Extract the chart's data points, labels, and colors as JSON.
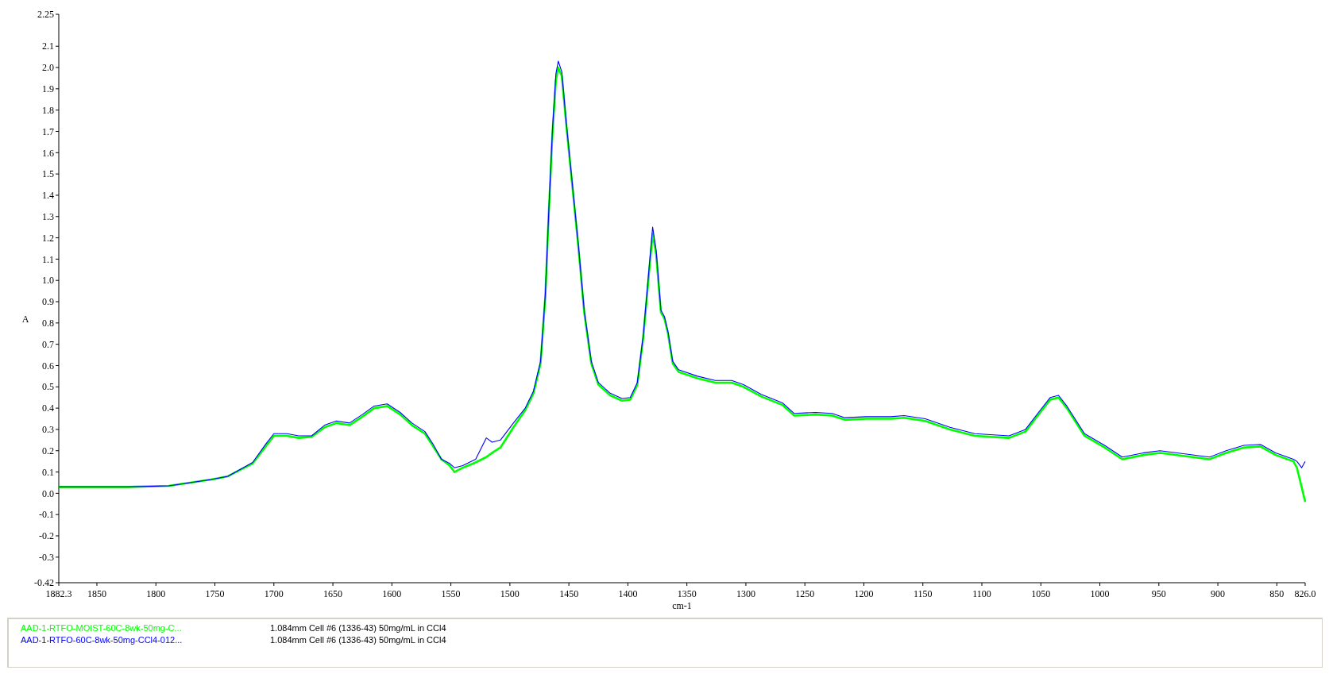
{
  "chart_data": {
    "type": "line",
    "xlabel": "cm-1",
    "ylabel": "A",
    "xlim": [
      1882.3,
      826
    ],
    "ylim": [
      -0.42,
      2.25
    ],
    "xticks": [
      1882.3,
      1850,
      1800,
      1750,
      1700,
      1650,
      1600,
      1550,
      1500,
      1450,
      1400,
      1350,
      1300,
      1250,
      1200,
      1150,
      1100,
      1050,
      1000,
      950,
      900,
      850,
      {
        "value": 826,
        "label": "826.0"
      }
    ],
    "yticks": [
      2.25,
      2.1,
      {
        "value": 2,
        "label": "2.0"
      },
      1.9,
      1.8,
      1.7,
      1.6,
      1.5,
      1.4,
      1.3,
      1.2,
      1.1,
      {
        "value": 1,
        "label": "1.0"
      },
      0.9,
      0.8,
      0.7,
      0.6,
      0.5,
      0.4,
      0.3,
      0.2,
      0.1,
      {
        "value": 0,
        "label": "0.0"
      },
      -0.1,
      -0.2,
      -0.3,
      -0.42
    ],
    "grid": false,
    "legend": "bottom",
    "marker": "none",
    "line_style": "solid",
    "annotations": [
      "1.084mm Cell #6 (1336-43) 50mg/mL in CCl4",
      "1.084mm Cell #6 (1336-43) 50mg/mL in CCl4"
    ],
    "x": [
      1882.3,
      1825,
      1789,
      1753,
      1739,
      1718,
      1707,
      1700,
      1689,
      1679,
      1668,
      1657,
      1647,
      1636,
      1625,
      1615,
      1604,
      1593,
      1583,
      1572,
      1565,
      1558,
      1551,
      1547,
      1540,
      1529,
      1520,
      1515,
      1508,
      1497,
      1487,
      1480,
      1474,
      1470,
      1467,
      1464,
      1461,
      1459,
      1456,
      1452,
      1447,
      1442,
      1437,
      1431,
      1425,
      1415,
      1405,
      1398,
      1392,
      1387,
      1382,
      1379,
      1376,
      1372,
      1369,
      1366,
      1362,
      1357,
      1341,
      1326,
      1312,
      1302,
      1287,
      1269,
      1259,
      1241,
      1227,
      1216,
      1198,
      1177,
      1166,
      1148,
      1127,
      1106,
      1077,
      1063,
      1052,
      1042,
      1035,
      1028,
      1013,
      996,
      981,
      963,
      949,
      928,
      907,
      893,
      878,
      864,
      851,
      836,
      833,
      829,
      826
    ],
    "series": [
      {
        "name": "AAD-1-RTFO-MOIST-60C-8wk-50mg-C...",
        "color": "#00ff00",
        "values": [
          0.03,
          0.03,
          0.035,
          0.065,
          0.08,
          0.14,
          0.22,
          0.27,
          0.27,
          0.26,
          0.265,
          0.31,
          0.33,
          0.32,
          0.36,
          0.4,
          0.41,
          0.37,
          0.32,
          0.28,
          0.22,
          0.16,
          0.13,
          0.1,
          0.12,
          0.145,
          0.17,
          0.19,
          0.215,
          0.31,
          0.39,
          0.47,
          0.61,
          0.92,
          1.32,
          1.68,
          1.94,
          2.0,
          1.96,
          1.72,
          1.44,
          1.16,
          0.85,
          0.61,
          0.51,
          0.46,
          0.435,
          0.44,
          0.51,
          0.73,
          1.04,
          1.22,
          1.12,
          0.85,
          0.82,
          0.75,
          0.61,
          0.57,
          0.54,
          0.52,
          0.52,
          0.5,
          0.455,
          0.415,
          0.365,
          0.37,
          0.365,
          0.345,
          0.35,
          0.35,
          0.355,
          0.34,
          0.3,
          0.27,
          0.26,
          0.29,
          0.37,
          0.44,
          0.45,
          0.4,
          0.27,
          0.215,
          0.16,
          0.18,
          0.19,
          0.175,
          0.16,
          0.19,
          0.215,
          0.22,
          0.18,
          0.15,
          0.12,
          0.03,
          -0.04
        ]
      },
      {
        "name": "AAD-1-RTFO-60C-8wk-50mg-CCl4-012...",
        "color": "#0000ff",
        "values": [
          0.03,
          0.03,
          0.035,
          0.065,
          0.08,
          0.145,
          0.23,
          0.28,
          0.28,
          0.27,
          0.27,
          0.32,
          0.34,
          0.33,
          0.37,
          0.41,
          0.42,
          0.38,
          0.33,
          0.29,
          0.23,
          0.16,
          0.14,
          0.12,
          0.13,
          0.16,
          0.26,
          0.24,
          0.25,
          0.33,
          0.4,
          0.48,
          0.62,
          0.93,
          1.33,
          1.7,
          1.97,
          2.03,
          1.98,
          1.73,
          1.45,
          1.17,
          0.86,
          0.62,
          0.52,
          0.47,
          0.445,
          0.45,
          0.52,
          0.74,
          1.06,
          1.25,
          1.14,
          0.86,
          0.83,
          0.76,
          0.62,
          0.58,
          0.55,
          0.53,
          0.53,
          0.51,
          0.465,
          0.425,
          0.375,
          0.38,
          0.375,
          0.355,
          0.36,
          0.36,
          0.365,
          0.35,
          0.31,
          0.28,
          0.27,
          0.3,
          0.38,
          0.45,
          0.46,
          0.41,
          0.28,
          0.225,
          0.17,
          0.19,
          0.2,
          0.185,
          0.17,
          0.2,
          0.225,
          0.23,
          0.19,
          0.16,
          0.15,
          0.12,
          0.15
        ]
      }
    ]
  }
}
